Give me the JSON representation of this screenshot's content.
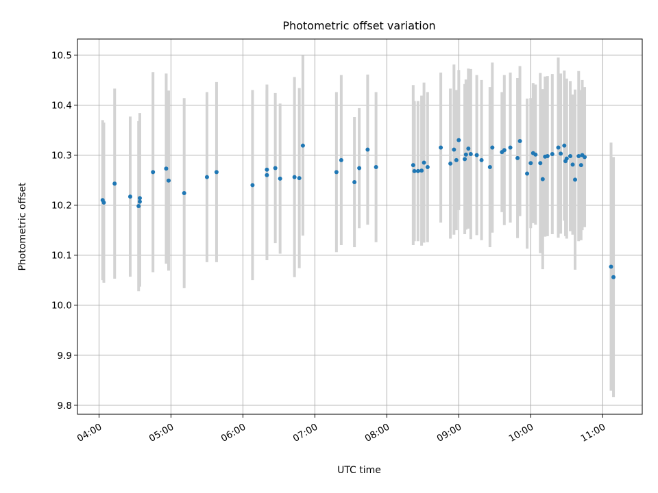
{
  "chart_data": {
    "type": "scatter",
    "title": "Photometric offset variation",
    "xlabel": "UTC time",
    "ylabel": "Photometric offset",
    "x_unit": "UTC time (HH:MM)",
    "xlim": [
      "03:42",
      "11:33"
    ],
    "ylim": [
      9.782,
      10.532
    ],
    "x_ticks": [
      "04:00",
      "05:00",
      "06:00",
      "07:00",
      "08:00",
      "09:00",
      "10:00",
      "11:00"
    ],
    "y_ticks": [
      9.8,
      9.9,
      10.0,
      10.1,
      10.2,
      10.3,
      10.4,
      10.5
    ],
    "y_tick_labels": [
      "9.8",
      "9.9",
      "10.0",
      "10.1",
      "10.2",
      "10.3",
      "10.4",
      "10.5"
    ],
    "grid": true,
    "legend": "none",
    "colors": {
      "point": "#1f77b4",
      "errorbar": "#d3d3d3",
      "grid": "#b0b0b0"
    },
    "series": [
      {
        "marker": "point with vertical error bar",
        "x": [
          "04:03",
          "04:04",
          "04:13",
          "04:26",
          "04:33",
          "04:34",
          "04:34",
          "04:45",
          "04:56",
          "04:58",
          "05:11",
          "05:30",
          "05:38",
          "06:08",
          "06:20",
          "06:20",
          "06:27",
          "06:31",
          "06:43",
          "06:47",
          "06:50",
          "07:18",
          "07:22",
          "07:33",
          "07:37",
          "07:44",
          "07:51",
          "08:22",
          "08:23",
          "08:26",
          "08:29",
          "08:31",
          "08:34",
          "08:45",
          "08:53",
          "08:56",
          "08:58",
          "09:00",
          "09:05",
          "09:06",
          "09:08",
          "09:10",
          "09:15",
          "09:19",
          "09:26",
          "09:28",
          "09:36",
          "09:38",
          "09:43",
          "09:49",
          "09:51",
          "09:57",
          "10:00",
          "10:02",
          "10:04",
          "10:08",
          "10:10",
          "10:12",
          "10:14",
          "10:18",
          "10:23",
          "10:25",
          "10:28",
          "10:29",
          "10:30",
          "10:33",
          "10:35",
          "10:37",
          "10:40",
          "10:42",
          "10:43",
          "10:45"
        ],
        "y": [
          10.21,
          10.205,
          10.243,
          10.217,
          10.198,
          10.214,
          10.207,
          10.266,
          10.273,
          10.249,
          10.224,
          10.256,
          10.266,
          10.24,
          10.271,
          10.26,
          10.274,
          10.253,
          10.256,
          10.254,
          10.319,
          10.266,
          10.29,
          10.246,
          10.274,
          10.311,
          10.276,
          10.28,
          10.268,
          10.268,
          10.269,
          10.285,
          10.276,
          10.315,
          10.283,
          10.311,
          10.29,
          10.33,
          10.292,
          10.301,
          10.313,
          10.302,
          10.3,
          10.29,
          10.276,
          10.315,
          10.306,
          10.31,
          10.315,
          10.294,
          10.328,
          10.263,
          10.284,
          10.304,
          10.301,
          10.284,
          10.252,
          10.297,
          10.298,
          10.302,
          10.315,
          10.303,
          10.319,
          10.288,
          10.293,
          10.298,
          10.281,
          10.251,
          10.298,
          10.28,
          10.3,
          10.296
        ],
        "yerr": [
          0.16,
          0.16,
          0.19,
          0.16,
          0.17,
          0.17,
          0.17,
          0.2,
          0.19,
          0.18,
          0.19,
          0.17,
          0.18,
          0.19,
          0.17,
          0.17,
          0.15,
          0.15,
          0.2,
          0.18,
          0.18,
          0.16,
          0.17,
          0.13,
          0.12,
          0.15,
          0.15,
          0.16,
          0.14,
          0.14,
          0.15,
          0.16,
          0.15,
          0.15,
          0.15,
          0.17,
          0.14,
          0.14,
          0.15,
          0.15,
          0.16,
          0.17,
          0.16,
          0.16,
          0.16,
          0.17,
          0.12,
          0.15,
          0.15,
          0.16,
          0.15,
          0.15,
          0.13,
          0.14,
          0.14,
          0.18,
          0.18,
          0.16,
          0.16,
          0.16,
          0.18,
          0.16,
          0.15,
          0.15,
          0.16,
          0.15,
          0.14,
          0.18,
          0.17,
          0.15,
          0.15,
          0.14
        ]
      },
      {
        "marker": "point with vertical error bar",
        "x": [
          "11:07",
          "11:09"
        ],
        "y": [
          10.077,
          10.056
        ],
        "yerr": [
          0.248,
          0.24
        ]
      }
    ]
  }
}
